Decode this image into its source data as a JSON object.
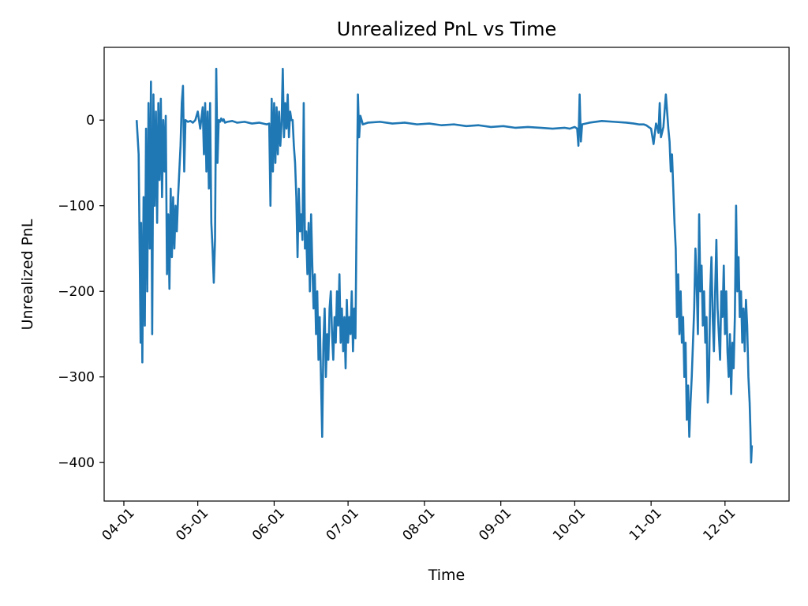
{
  "chart_data": {
    "type": "line",
    "title": "Unrealized PnL vs Time",
    "xlabel": "Time",
    "ylabel": "Unrealized PnL",
    "x_tick_labels": [
      "04-01",
      "05-01",
      "06-01",
      "07-01",
      "08-01",
      "09-01",
      "10-01",
      "11-01",
      "12-01"
    ],
    "x_ticks_day_of_year": [
      91,
      121,
      152,
      182,
      213,
      244,
      274,
      305,
      335
    ],
    "y_ticks": [
      0,
      -100,
      -200,
      -300,
      -400
    ],
    "y_tick_labels": [
      "0",
      "−100",
      "−200",
      "−300",
      "−400"
    ],
    "xlim_day_of_year": [
      83,
      361
    ],
    "ylim": [
      -445,
      85
    ],
    "grid": false,
    "legend": "none",
    "series": [
      {
        "color": "#1f77b4",
        "x_day_of_year": [
          96.2,
          97.0,
          97.8,
          98.0,
          98.5,
          99.0,
          99.5,
          100.0,
          100.5,
          101.0,
          101.5,
          102.0,
          102.5,
          103.0,
          103.5,
          104.0,
          104.5,
          105.0,
          105.5,
          106.0,
          106.5,
          107.0,
          107.5,
          108.0,
          108.5,
          109.0,
          109.5,
          110.0,
          110.5,
          111.0,
          111.5,
          112.0,
          112.5,
          113.0,
          113.5,
          114.0,
          114.5,
          115.0,
          115.5,
          116.0,
          117.0,
          118.0,
          119.0,
          120.0,
          121.0,
          122.0,
          123.0,
          123.5,
          124.0,
          124.5,
          125.0,
          125.5,
          126.0,
          126.5,
          127.0,
          127.5,
          128.0,
          128.5,
          129.0,
          129.5,
          130.0,
          130.5,
          131.0,
          131.5,
          132.0,
          133.0,
          135.0,
          137.0,
          140.0,
          143.0,
          146.0,
          149.0,
          150.0,
          150.5,
          151.0,
          151.5,
          152.0,
          152.5,
          153.0,
          153.5,
          154.0,
          154.5,
          155.0,
          155.5,
          156.0,
          156.5,
          157.0,
          157.5,
          158.0,
          158.5,
          159.0,
          159.5,
          160.0,
          160.5,
          161.0,
          161.5,
          162.0,
          162.5,
          163.0,
          163.5,
          164.0,
          164.5,
          165.0,
          165.5,
          166.0,
          166.5,
          167.0,
          167.5,
          168.0,
          168.5,
          169.0,
          169.5,
          170.0,
          170.5,
          171.0,
          171.5,
          172.0,
          172.5,
          173.0,
          173.5,
          174.0,
          174.5,
          175.0,
          175.5,
          176.0,
          176.5,
          177.0,
          177.5,
          178.0,
          178.5,
          179.0,
          179.5,
          180.0,
          180.5,
          181.0,
          181.5,
          182.0,
          182.5,
          183.0,
          183.5,
          184.0,
          184.5,
          185.0,
          185.5,
          186.0,
          186.5,
          187.0,
          188.0,
          190.0,
          195.0,
          200.0,
          205.0,
          210.0,
          215.0,
          220.0,
          225.0,
          230.0,
          235.0,
          240.0,
          245.0,
          250.0,
          255.0,
          260.0,
          265.0,
          270.0,
          272.0,
          274.0,
          275.0,
          275.5,
          276.0,
          276.5,
          277.0,
          280.0,
          285.0,
          290.0,
          295.0,
          298.0,
          300.0,
          302.0,
          303.0,
          304.0,
          305.0,
          306.0,
          307.0,
          307.5,
          308.0,
          308.5,
          309.0,
          310.0,
          311.0,
          312.0,
          312.5,
          313.0,
          313.5,
          314.0,
          314.5,
          315.0,
          315.5,
          316.0,
          316.5,
          317.0,
          317.5,
          318.0,
          318.5,
          319.0,
          319.5,
          320.0,
          320.5,
          321.0,
          321.5,
          322.0,
          322.5,
          323.0,
          323.5,
          324.0,
          324.5,
          325.0,
          325.5,
          326.0,
          326.5,
          327.0,
          327.5,
          328.0,
          328.5,
          329.0,
          329.5,
          330.0,
          330.5,
          331.0,
          331.5,
          332.0,
          332.5,
          333.0,
          333.5,
          334.0,
          334.5,
          335.0,
          335.5,
          336.0,
          336.5,
          337.0,
          337.5,
          338.0,
          338.5,
          339.0,
          339.5,
          340.0,
          340.5,
          341.0,
          341.5,
          342.0,
          342.5,
          343.0,
          343.5,
          344.0,
          344.5,
          345.0,
          345.3,
          345.6,
          345.9
        ],
        "y": [
          0,
          -40,
          -260,
          -120,
          -283,
          -90,
          -240,
          -10,
          -200,
          20,
          -150,
          45,
          -250,
          30,
          -100,
          10,
          -120,
          20,
          -70,
          25,
          -90,
          0,
          -60,
          5,
          -180,
          -110,
          -197,
          -80,
          -160,
          -90,
          -150,
          -100,
          -130,
          -90,
          -60,
          -30,
          20,
          40,
          -60,
          0,
          -2,
          -1,
          -3,
          0,
          10,
          -10,
          15,
          -40,
          20,
          -60,
          10,
          -80,
          20,
          -120,
          -150,
          -190,
          -140,
          60,
          -50,
          0,
          -2,
          2,
          -1,
          1,
          -3,
          -2,
          -1,
          -3,
          -2,
          -4,
          -3,
          -5,
          -4,
          -100,
          25,
          -60,
          20,
          -50,
          15,
          -40,
          10,
          -30,
          -5,
          60,
          -20,
          20,
          -10,
          30,
          -20,
          10,
          0,
          0,
          -30,
          -50,
          -90,
          -160,
          -80,
          -130,
          -110,
          -140,
          20,
          -150,
          -130,
          -180,
          -120,
          -200,
          -110,
          -170,
          -220,
          -180,
          -250,
          -200,
          -280,
          -230,
          -300,
          -370,
          -260,
          -220,
          -300,
          -250,
          -280,
          -220,
          -200,
          -250,
          -280,
          -230,
          -260,
          -200,
          -240,
          -180,
          -260,
          -220,
          -270,
          -230,
          -290,
          -210,
          -260,
          -230,
          -250,
          -200,
          -270,
          -220,
          -255,
          -100,
          30,
          -20,
          5,
          -5,
          -3,
          -2,
          -4,
          -3,
          -5,
          -4,
          -6,
          -5,
          -7,
          -6,
          -8,
          -7,
          -9,
          -8,
          -9,
          -10,
          -9,
          -10,
          -8,
          -10,
          -30,
          30,
          -25,
          -5,
          -3,
          -1,
          -2,
          -3,
          -4,
          -5,
          -5,
          -6,
          -8,
          -10,
          -28,
          -4,
          -8,
          -15,
          20,
          -20,
          -8,
          30,
          -10,
          -25,
          -60,
          -40,
          -80,
          -120,
          -150,
          -230,
          -180,
          -250,
          -200,
          -260,
          -230,
          -300,
          -260,
          -350,
          -310,
          -370,
          -330,
          -300,
          -260,
          -220,
          -150,
          -190,
          -250,
          -110,
          -200,
          -170,
          -240,
          -200,
          -260,
          -230,
          -330,
          -300,
          -200,
          -160,
          -230,
          -270,
          -200,
          -140,
          -220,
          -250,
          -280,
          -200,
          -230,
          -170,
          -250,
          -200,
          -270,
          -300,
          -250,
          -320,
          -260,
          -290,
          -230,
          -100,
          -200,
          -160,
          -230,
          -200,
          -260,
          -220,
          -270,
          -210,
          -240,
          -300,
          -330,
          -360,
          -400,
          -380,
          -410,
          -370,
          -420,
          0
        ]
      }
    ]
  }
}
